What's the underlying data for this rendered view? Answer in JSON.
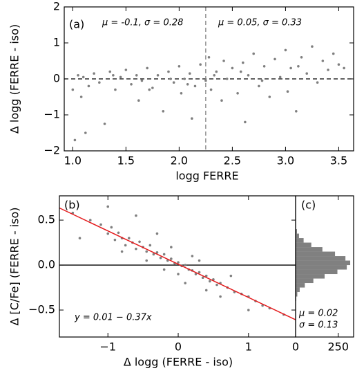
{
  "chart_data": [
    {
      "type": "scatter",
      "panel_label": "(a)",
      "xlabel": "logg FERRE",
      "ylabel": "Δ logg (FERRE - iso)",
      "annotations": [
        "μ = -0.1, σ = 0.28",
        "μ = 0.05, σ = 0.33"
      ],
      "xlim": [
        0.92,
        3.64
      ],
      "ylim": [
        -2,
        2
      ],
      "xticks": [
        {
          "value": 1,
          "label": "1.0"
        },
        1.5,
        {
          "value": 2,
          "label": "2.0"
        },
        2.5,
        {
          "value": 3,
          "label": "3.0"
        },
        3.5
      ],
      "yticks": [
        {
          "value": -2,
          "label": "−2"
        },
        {
          "value": -1,
          "label": "−1"
        },
        0,
        1,
        2
      ],
      "reference_lines": [
        {
          "axis": "y",
          "value": 0,
          "style": "dashed",
          "color": "#000000"
        },
        {
          "axis": "x",
          "value": 2.25,
          "style": "dashed",
          "color": "#808080"
        }
      ],
      "series": [
        {
          "color": "#7f7f7f",
          "x": [
            1.0,
            1.02,
            1.05,
            1.08,
            1.1,
            1.12,
            1.15,
            1.2,
            1.25,
            1.3,
            1.35,
            1.4,
            1.45,
            1.5,
            1.55,
            1.6,
            1.62,
            1.65,
            1.7,
            1.75,
            1.8,
            1.85,
            1.9,
            1.95,
            2.0,
            2.02,
            2.05,
            2.1,
            2.12,
            2.15,
            2.2,
            2.25,
            2.28,
            2.3,
            2.35,
            2.4,
            2.42,
            2.45,
            2.5,
            2.55,
            2.6,
            2.62,
            2.65,
            2.7,
            2.75,
            2.8,
            2.85,
            2.9,
            2.95,
            3.0,
            3.02,
            3.05,
            3.1,
            3.15,
            3.2,
            3.25,
            3.3,
            3.35,
            3.4,
            3.45,
            3.5,
            3.55,
            1.72,
            2.08,
            2.33,
            2.58,
            2.78,
            3.12,
            1.38,
            1.92
          ],
          "values": [
            -0.3,
            -1.7,
            0.1,
            -0.5,
            0.05,
            -1.5,
            -0.2,
            0.15,
            -0.1,
            -1.25,
            0.2,
            -0.3,
            0.05,
            0.25,
            -0.15,
            0.1,
            -0.6,
            -0.05,
            0.3,
            -0.25,
            0.1,
            -0.9,
            0.2,
            -0.1,
            0.35,
            -0.4,
            0.0,
            0.15,
            -1.1,
            -0.2,
            0.4,
            -0.05,
            0.6,
            -0.3,
            0.2,
            -0.6,
            0.5,
            0.0,
            0.3,
            -0.4,
            0.45,
            -1.2,
            0.1,
            0.7,
            -0.2,
            0.35,
            -0.5,
            0.55,
            0.05,
            0.8,
            -0.35,
            0.3,
            -0.9,
            0.6,
            0.15,
            0.9,
            -0.1,
            0.5,
            0.25,
            0.7,
            0.4,
            0.3,
            -0.3,
            -0.15,
            0.1,
            0.2,
            -0.05,
            0.35,
            0.1,
            0.0
          ]
        }
      ]
    },
    {
      "type": "scatter",
      "panel_label": "(b)",
      "xlabel": "Δ logg (FERRE - iso)",
      "ylabel": "Δ [C/Fe] (FERRE - iso)",
      "annotations": [
        "y = 0.01 − 0.37x"
      ],
      "xlim": [
        -1.69,
        1.67
      ],
      "ylim": [
        -0.8,
        0.77
      ],
      "xticks": [
        {
          "value": -1,
          "label": "−1"
        },
        0,
        1
      ],
      "yticks": [
        {
          "value": -0.5,
          "label": "−0.5"
        },
        {
          "value": 0,
          "label": "0.0"
        },
        0.5
      ],
      "reference_lines": [
        {
          "axis": "y",
          "value": 0,
          "style": "solid",
          "color": "#000000"
        }
      ],
      "fit": {
        "intercept": 0.01,
        "slope": -0.37,
        "color": "#e41a1c"
      },
      "series": [
        {
          "color": "#7f7f7f",
          "x": [
            -1.5,
            -1.4,
            -1.25,
            -1.1,
            -1.0,
            -0.95,
            -0.9,
            -0.85,
            -0.8,
            -0.75,
            -0.7,
            -0.65,
            -0.6,
            -0.55,
            -0.5,
            -0.45,
            -0.4,
            -0.35,
            -0.3,
            -0.25,
            -0.2,
            -0.15,
            -0.1,
            -0.05,
            0.0,
            0.05,
            0.1,
            0.15,
            0.2,
            0.25,
            0.3,
            0.35,
            0.4,
            0.45,
            0.5,
            0.55,
            0.6,
            0.7,
            0.8,
            0.9,
            1.0,
            1.1,
            1.2,
            1.3,
            1.5,
            -0.6,
            -1.0,
            -0.3,
            0.1,
            0.3,
            -0.2,
            0.6,
            -0.8,
            0.0,
            -0.1,
            0.2,
            0.4,
            -0.45,
            0.75,
            1.0
          ],
          "values": [
            0.58,
            0.3,
            0.5,
            0.45,
            0.35,
            0.42,
            0.28,
            0.36,
            0.3,
            0.22,
            0.3,
            0.25,
            0.18,
            0.26,
            0.2,
            0.15,
            0.22,
            0.12,
            0.14,
            0.08,
            0.12,
            0.05,
            0.07,
            0.02,
            0.03,
            -0.01,
            0.0,
            -0.05,
            -0.06,
            -0.1,
            -0.08,
            -0.14,
            -0.12,
            -0.18,
            -0.16,
            -0.22,
            -0.2,
            -0.25,
            -0.3,
            -0.32,
            -0.35,
            -0.4,
            -0.45,
            -0.48,
            -0.55,
            0.55,
            0.65,
            0.35,
            -0.2,
            0.05,
            -0.05,
            -0.35,
            0.15,
            -0.1,
            0.2,
            0.1,
            -0.28,
            0.05,
            -0.12,
            -0.5
          ]
        }
      ]
    },
    {
      "type": "histogram",
      "orientation": "horizontal",
      "panel_label": "(c)",
      "annotations": [
        "μ = 0.02",
        "σ = 0.13"
      ],
      "xlim": [
        0,
        340
      ],
      "ylim": [
        -0.8,
        0.77
      ],
      "xticks": [
        0,
        250
      ],
      "color": "#808080",
      "bins": [
        -0.6,
        -0.55,
        -0.5,
        -0.45,
        -0.4,
        -0.35,
        -0.3,
        -0.25,
        -0.2,
        -0.15,
        -0.1,
        -0.05,
        0,
        0.05,
        0.1,
        0.15,
        0.2,
        0.25,
        0.3,
        0.35,
        0.4,
        0.45,
        0.5,
        0.55,
        0.6
      ],
      "values": [
        0,
        1,
        1,
        2,
        4,
        10,
        24,
        54,
        104,
        170,
        245,
        300,
        320,
        292,
        231,
        157,
        92,
        47,
        20,
        8,
        2,
        1,
        0,
        0
      ]
    }
  ]
}
